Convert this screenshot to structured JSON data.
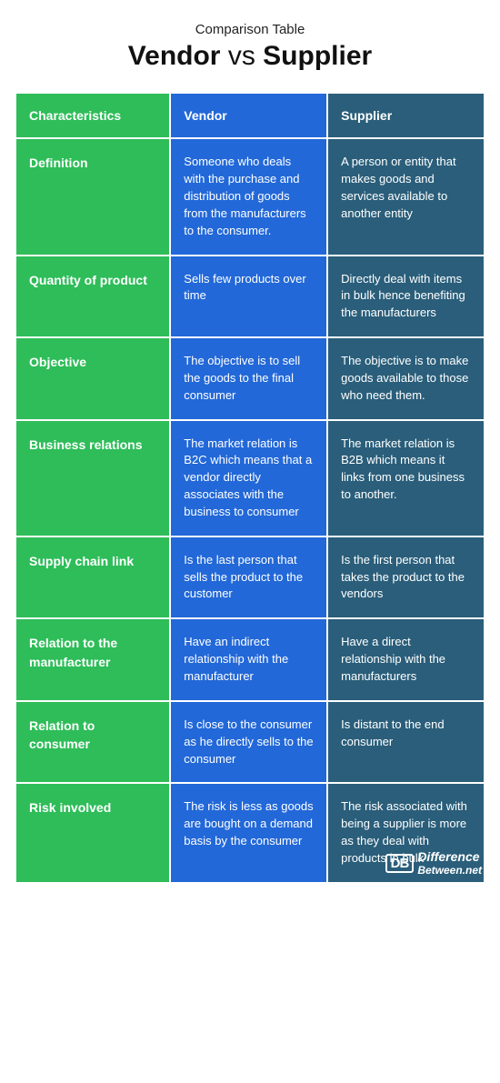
{
  "header": {
    "supertitle": "Comparison Table",
    "title_left": "Vendor",
    "title_middle": " vs ",
    "title_right": "Supplier"
  },
  "colors": {
    "col_characteristics_bg": "#2ebd59",
    "col_vendor_bg": "#2268d8",
    "col_supplier_bg": "#2a5e7a",
    "page_bg": "#ffffff",
    "text_color": "#ffffff",
    "title_color": "#111111"
  },
  "columns": [
    "Characteristics",
    "Vendor",
    "Supplier"
  ],
  "rows": [
    {
      "label": "Definition",
      "vendor": "Someone who deals with the purchase and distribution of goods from the manufacturers to the consumer.",
      "supplier": "A person or entity that makes goods and services available to another entity"
    },
    {
      "label": "Quantity of product",
      "vendor": "Sells few products over time",
      "supplier": "Directly deal with items in bulk hence benefiting the manufacturers"
    },
    {
      "label": "Objective",
      "vendor": "The objective is to sell the goods to the final consumer",
      "supplier": "The objective is to make goods available to those who need them."
    },
    {
      "label": "Business relations",
      "vendor": "The market relation is B2C which means that a vendor directly associates with the business to consumer",
      "supplier": "The market relation is B2B which means it links from one business to another."
    },
    {
      "label": "Supply chain link",
      "vendor": "Is the last person that sells the product to the customer",
      "supplier": "Is the first person that takes the product to the vendors"
    },
    {
      "label": "Relation to the manufacturer",
      "vendor": "Have an indirect relationship with the manufacturer",
      "supplier": "Have a direct relationship with the manufacturers"
    },
    {
      "label": "Relation to consumer",
      "vendor": "Is close to the consumer as he directly sells to the consumer",
      "supplier": "Is distant to the end consumer"
    },
    {
      "label": "Risk involved",
      "vendor": "The risk is less as goods are bought on a demand basis by the consumer",
      "supplier": "The risk associated with being a supplier is more as they deal with products in bulk"
    }
  ],
  "logo": {
    "db": "DB",
    "line1": "Difference",
    "line2": "Between.net"
  },
  "style": {
    "cell_fontsize": 13,
    "header_fontsize": 14,
    "title_fontsize": 30,
    "border_spacing": 2
  }
}
